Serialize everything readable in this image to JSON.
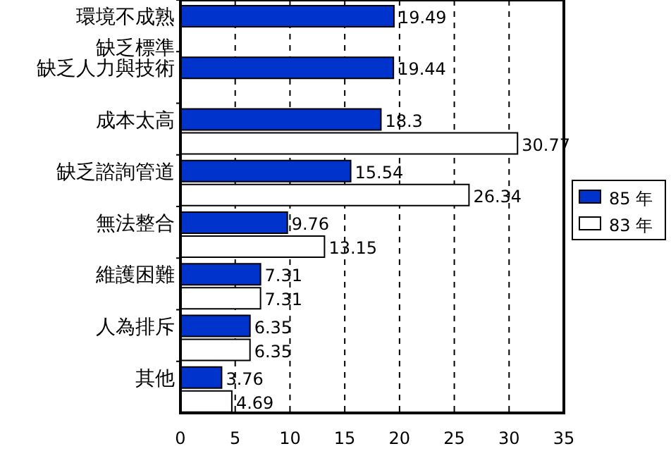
{
  "chart_data": {
    "type": "bar",
    "orientation": "horizontal",
    "categories": [
      "環境不成熟缺乏標準",
      "缺乏人力與技術",
      "成本太高",
      "缺乏諮詢管道",
      "無法整合",
      "維護困難",
      "人為排斥",
      "其他"
    ],
    "series": [
      {
        "name": "85 年",
        "color": "#0033cc",
        "values": [
          19.49,
          19.44,
          18.3,
          15.54,
          9.76,
          7.31,
          6.35,
          3.76
        ]
      },
      {
        "name": "83 年",
        "color": "#ffffff",
        "values": [
          null,
          null,
          30.77,
          26.34,
          13.15,
          7.31,
          6.35,
          4.69
        ]
      }
    ],
    "xlim": [
      0,
      35
    ],
    "xticks": [
      0,
      5,
      10,
      15,
      20,
      25,
      30,
      35
    ],
    "grid": "x",
    "legend": "right",
    "data_labels": true
  }
}
